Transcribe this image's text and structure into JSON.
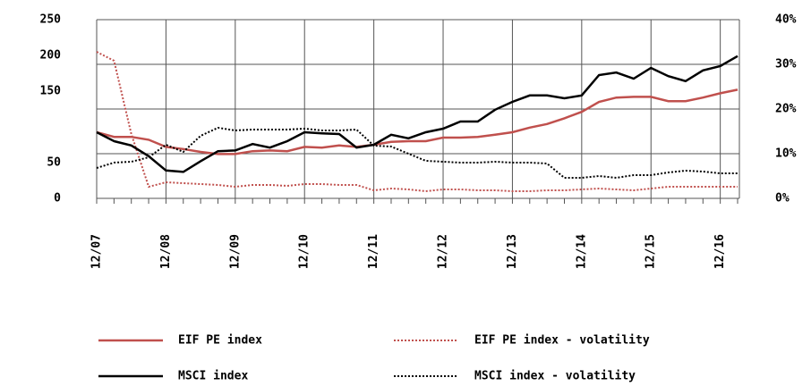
{
  "chart_data": {
    "type": "line",
    "categories": [
      "12/07",
      null,
      null,
      null,
      "12/08",
      null,
      null,
      null,
      "12/09",
      null,
      null,
      null,
      "12/10",
      null,
      null,
      null,
      "12/11",
      null,
      null,
      null,
      "12/12",
      null,
      null,
      null,
      "12/13",
      null,
      null,
      null,
      "12/14",
      null,
      null,
      null,
      "12/15",
      null,
      null,
      null,
      "12/16",
      null
    ],
    "ylim": [
      0,
      250
    ],
    "yticks": [
      0,
      50,
      150,
      200,
      250
    ],
    "y2lim": [
      0,
      40
    ],
    "y2ticks": [
      {
        "value": 0,
        "label": "0%"
      },
      {
        "value": 10,
        "label": "10%"
      },
      {
        "value": 20,
        "label": "20%"
      },
      {
        "value": 30,
        "label": "30%"
      },
      {
        "value": 40,
        "label": "40%"
      }
    ],
    "grid": true,
    "legend": "bottom",
    "series": [
      {
        "name": "EIF PE index",
        "color": "#c0504d",
        "style": "solid",
        "values": [
          92.5,
          86,
          86,
          82,
          72,
          69,
          65,
          62,
          62,
          66,
          67,
          66,
          72,
          71,
          74,
          72,
          75,
          79,
          80,
          80,
          85,
          85,
          86,
          89,
          92.5,
          99,
          104,
          112,
          121,
          135,
          141,
          142,
          142,
          136,
          136,
          141,
          147,
          152
        ]
      },
      {
        "name": "EIF PE index - volatility",
        "color": "#c0504d",
        "style": "dotted",
        "axis": "y2",
        "values": [
          32.8,
          30.8,
          14.4,
          2.6,
          3.6,
          3.4,
          3.2,
          3.0,
          2.6,
          3.0,
          3.0,
          2.8,
          3.2,
          3.2,
          3.0,
          3.0,
          1.8,
          2.2,
          2.0,
          1.6,
          2.0,
          2.0,
          1.8,
          1.8,
          1.6,
          1.6,
          1.8,
          1.8,
          2.0,
          2.2,
          2.0,
          1.8,
          2.2,
          2.6,
          2.6,
          2.6,
          2.6,
          2.6
        ]
      },
      {
        "name": "MSCI index",
        "color": "#000000",
        "style": "solid",
        "values": [
          92.5,
          80,
          74,
          59,
          39,
          37,
          52,
          66,
          67,
          76,
          71,
          80,
          92.5,
          91,
          90,
          71,
          75,
          89,
          84,
          92.5,
          97.5,
          107.5,
          107.5,
          124,
          135,
          144,
          144,
          140,
          144,
          172.5,
          176,
          167.5,
          182.5,
          171,
          164,
          179,
          185,
          199
        ]
      },
      {
        "name": "MSCI index - volatility",
        "color": "#000000",
        "style": "dotted",
        "axis": "y2",
        "values": [
          6.8,
          8,
          8.2,
          9.2,
          12,
          10.4,
          14,
          15.8,
          15.2,
          15.4,
          15.4,
          15.4,
          15.6,
          15.2,
          15.2,
          15.4,
          11.8,
          11.6,
          10,
          8.4,
          8.2,
          8,
          8,
          8.2,
          8,
          8,
          7.8,
          4.6,
          4.6,
          5,
          4.6,
          5.2,
          5.2,
          5.8,
          6.2,
          6,
          5.6,
          5.6
        ]
      }
    ]
  }
}
